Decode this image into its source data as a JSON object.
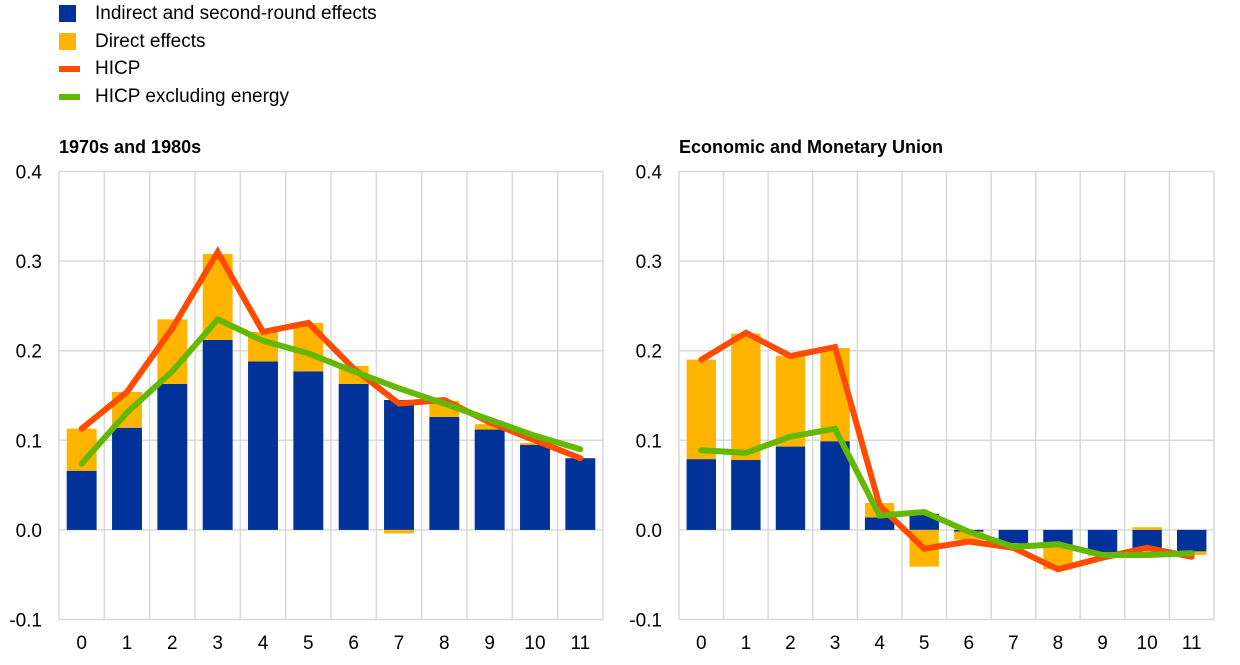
{
  "legend": [
    {
      "label": "Indirect and second-round effects",
      "kind": "box",
      "color": "#003299"
    },
    {
      "label": "Direct effects",
      "kind": "box",
      "color": "#FFB400"
    },
    {
      "label": "HICP",
      "kind": "line",
      "color": "#FF4B00"
    },
    {
      "label": "HICP excluding energy",
      "kind": "line",
      "color": "#65B800"
    }
  ],
  "chart_data": [
    {
      "type": "bar",
      "title": "1970s and 1980s",
      "xlabel": "",
      "ylabel": "",
      "ylim": [
        -0.1,
        0.4
      ],
      "yticks": [
        "-0.1",
        "0.0",
        "0.1",
        "0.2",
        "0.3",
        "0.4"
      ],
      "categories": [
        "0",
        "1",
        "2",
        "3",
        "4",
        "5",
        "6",
        "7",
        "8",
        "9",
        "10",
        "11"
      ],
      "grid": true,
      "legend_position": "top-left",
      "series": [
        {
          "name": "Indirect and second-round effects",
          "kind": "stacked-bar",
          "color": "#003299",
          "values": [
            0.066,
            0.114,
            0.163,
            0.212,
            0.188,
            0.177,
            0.163,
            0.145,
            0.126,
            0.112,
            0.095,
            0.08
          ]
        },
        {
          "name": "Direct effects",
          "kind": "stacked-bar",
          "color": "#FFB400",
          "values": [
            0.047,
            0.04,
            0.072,
            0.096,
            0.033,
            0.054,
            0.02,
            -0.004,
            0.018,
            0.006,
            0.002,
            0.0
          ]
        },
        {
          "name": "HICP",
          "kind": "line",
          "color": "#FF4B00",
          "values": [
            0.113,
            0.154,
            0.225,
            0.31,
            0.221,
            0.231,
            0.18,
            0.141,
            0.145,
            0.12,
            0.1,
            0.08
          ]
        },
        {
          "name": "HICP excluding energy",
          "kind": "line",
          "color": "#65B800",
          "values": [
            0.074,
            0.131,
            0.177,
            0.235,
            0.211,
            0.197,
            0.177,
            0.158,
            0.141,
            0.123,
            0.105,
            0.09
          ]
        }
      ]
    },
    {
      "type": "bar",
      "title": "Economic and Monetary Union",
      "xlabel": "",
      "ylabel": "",
      "ylim": [
        -0.1,
        0.4
      ],
      "yticks": [
        "-0.1",
        "0.0",
        "0.1",
        "0.2",
        "0.3",
        "0.4"
      ],
      "categories": [
        "0",
        "1",
        "2",
        "3",
        "4",
        "5",
        "6",
        "7",
        "8",
        "9",
        "10",
        "11"
      ],
      "grid": true,
      "series": [
        {
          "name": "Indirect and second-round effects",
          "kind": "stacked-bar",
          "color": "#003299",
          "values": [
            0.079,
            0.078,
            0.093,
            0.099,
            0.014,
            0.018,
            -0.002,
            -0.015,
            -0.017,
            -0.026,
            -0.024,
            -0.024
          ]
        },
        {
          "name": "Direct effects",
          "kind": "stacked-bar",
          "color": "#FFB400",
          "values": [
            0.111,
            0.141,
            0.101,
            0.104,
            0.016,
            -0.041,
            -0.009,
            0.0,
            -0.027,
            -0.003,
            0.003,
            -0.004
          ]
        },
        {
          "name": "HICP",
          "kind": "line",
          "color": "#FF4B00",
          "values": [
            0.19,
            0.22,
            0.194,
            0.204,
            0.027,
            -0.021,
            -0.013,
            -0.02,
            -0.044,
            -0.031,
            -0.02,
            -0.03
          ]
        },
        {
          "name": "HICP excluding energy",
          "kind": "line",
          "color": "#65B800",
          "values": [
            0.089,
            0.086,
            0.104,
            0.113,
            0.016,
            0.02,
            -0.002,
            -0.019,
            -0.016,
            -0.028,
            -0.028,
            -0.026
          ]
        }
      ]
    }
  ]
}
